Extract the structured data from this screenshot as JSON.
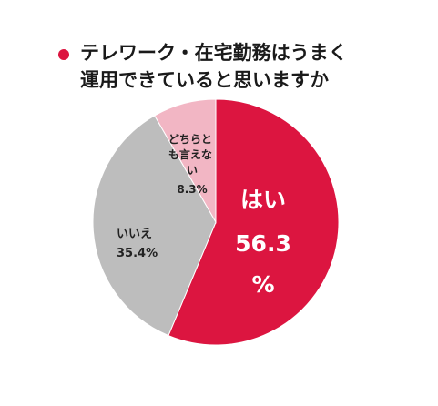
{
  "title": {
    "line1": "テレワーク・在宅勤務はうまく",
    "line2": "運用できていると思いますか"
  },
  "colors": {
    "accent": "#dc1540"
  },
  "chart_data": {
    "type": "pie",
    "start_angle_deg": 0,
    "direction": "clockwise",
    "slices": [
      {
        "label": "はい",
        "value": 56.3,
        "value_text": "56.3",
        "unit": "%",
        "color": "#dc1540"
      },
      {
        "label": "いいえ",
        "value": 35.4,
        "value_text": "35.4%",
        "color": "#bdbdbd"
      },
      {
        "label": "どちらとも言えない",
        "value": 8.3,
        "value_text": "8.3%",
        "color": "#f2b6c4"
      }
    ]
  }
}
